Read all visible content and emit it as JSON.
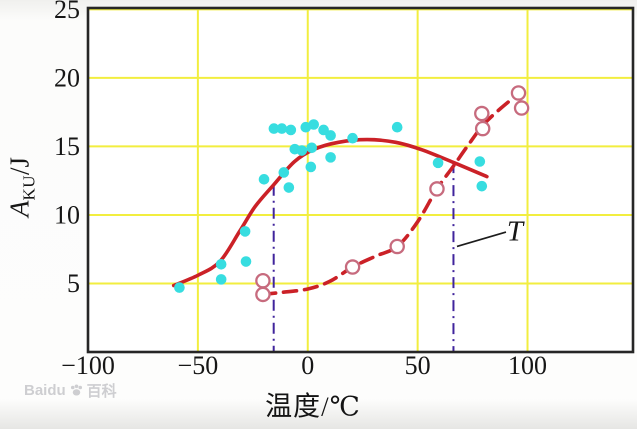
{
  "page": {
    "watermark": {
      "brand": "Baidu",
      "suffix": "百科"
    }
  },
  "chart_data": {
    "type": "scatter",
    "title": "",
    "xlabel": "温度/℃",
    "ylabel": {
      "var": "A",
      "sub": "KU",
      "unit": "/J"
    },
    "xlim": [
      -100,
      148
    ],
    "ylim": [
      0,
      25.1
    ],
    "x_ticks": [
      {
        "value": -100,
        "label": "−100"
      },
      {
        "value": -50,
        "label": "−50"
      },
      {
        "value": 0,
        "label": "0"
      },
      {
        "value": 50,
        "label": "50"
      },
      {
        "value": 100,
        "label": "100"
      }
    ],
    "y_ticks": [
      {
        "value": 5,
        "label": "5"
      },
      {
        "value": 10,
        "label": "10"
      },
      {
        "value": 15,
        "label": "15"
      },
      {
        "value": 20,
        "label": "20"
      },
      {
        "value": 25,
        "label": "25"
      }
    ],
    "grid": true,
    "legend": false,
    "colors": {
      "grid": "#f2ee3f",
      "frame": "#262626",
      "curve_red": "#cb2127",
      "filled_point": "#37dde0",
      "open_point": "#c76b7e",
      "marker_line": "#40249c",
      "annotation": "#1c1c1c"
    },
    "series": [
      {
        "name": "filled_scatter_points",
        "type": "scatter",
        "marker": "filled-circle",
        "points": [
          [
            -58.4,
            4.7
          ],
          [
            -39.4,
            6.4
          ],
          [
            -39.4,
            5.3
          ],
          [
            -28.1,
            6.6
          ],
          [
            -28.5,
            8.8
          ],
          [
            -19.9,
            12.6
          ],
          [
            -15.4,
            16.3
          ],
          [
            -11.8,
            16.3
          ],
          [
            -10.9,
            13.1
          ],
          [
            -8.6,
            12.0
          ],
          [
            -7.7,
            16.2
          ],
          [
            -5.9,
            14.8
          ],
          [
            -2.7,
            14.7
          ],
          [
            -0.9,
            16.4
          ],
          [
            1.4,
            13.5
          ],
          [
            1.8,
            14.9
          ],
          [
            2.7,
            16.6
          ],
          [
            7.2,
            16.2
          ],
          [
            10.4,
            15.8
          ],
          [
            10.4,
            14.2
          ],
          [
            20.4,
            15.6
          ],
          [
            40.7,
            16.4
          ],
          [
            59.3,
            13.8
          ],
          [
            78.3,
            13.9
          ],
          [
            79.2,
            12.1
          ]
        ]
      },
      {
        "name": "open_scatter_points",
        "type": "scatter",
        "marker": "open-circle",
        "points": [
          [
            -20.4,
            5.2
          ],
          [
            -20.4,
            4.2
          ],
          [
            20.4,
            6.2
          ],
          [
            40.7,
            7.7
          ],
          [
            58.8,
            11.9
          ],
          [
            79.2,
            17.4
          ],
          [
            79.6,
            16.3
          ],
          [
            95.9,
            18.9
          ],
          [
            97.3,
            17.8
          ]
        ]
      },
      {
        "name": "upper_transition_curve",
        "type": "line",
        "style": "solid",
        "points": [
          [
            -61,
            4.85
          ],
          [
            -50,
            5.6
          ],
          [
            -40,
            6.6
          ],
          [
            -31,
            8.8
          ],
          [
            -24,
            10.6
          ],
          [
            -15.5,
            12.2
          ],
          [
            -6,
            13.9
          ],
          [
            3,
            14.8
          ],
          [
            14,
            15.3
          ],
          [
            27,
            15.5
          ],
          [
            40,
            15.3
          ],
          [
            52,
            14.75
          ],
          [
            66,
            13.85
          ],
          [
            81.5,
            12.8
          ]
        ]
      },
      {
        "name": "lower_transition_curve",
        "type": "line",
        "style": "dashed",
        "points": [
          [
            -20.5,
            4.2
          ],
          [
            -12,
            4.35
          ],
          [
            0,
            4.6
          ],
          [
            10,
            5.15
          ],
          [
            20.4,
            6.2
          ],
          [
            31,
            7.0
          ],
          [
            40.7,
            7.7
          ],
          [
            50,
            9.5
          ],
          [
            58.8,
            11.9
          ],
          [
            66,
            13.5
          ],
          [
            73,
            15.1
          ],
          [
            80,
            16.6
          ],
          [
            88,
            17.8
          ],
          [
            95.9,
            18.85
          ]
        ]
      }
    ],
    "marker_lines": [
      {
        "x": -15.5,
        "y_top": 12.2
      },
      {
        "x": 66.3,
        "y_top": 13.85
      }
    ],
    "annotation": {
      "label": "T",
      "x": 94.3,
      "y": 8.8,
      "leader": [
        [
          67.9,
          7.7
        ],
        [
          90.2,
          8.75
        ]
      ]
    }
  }
}
